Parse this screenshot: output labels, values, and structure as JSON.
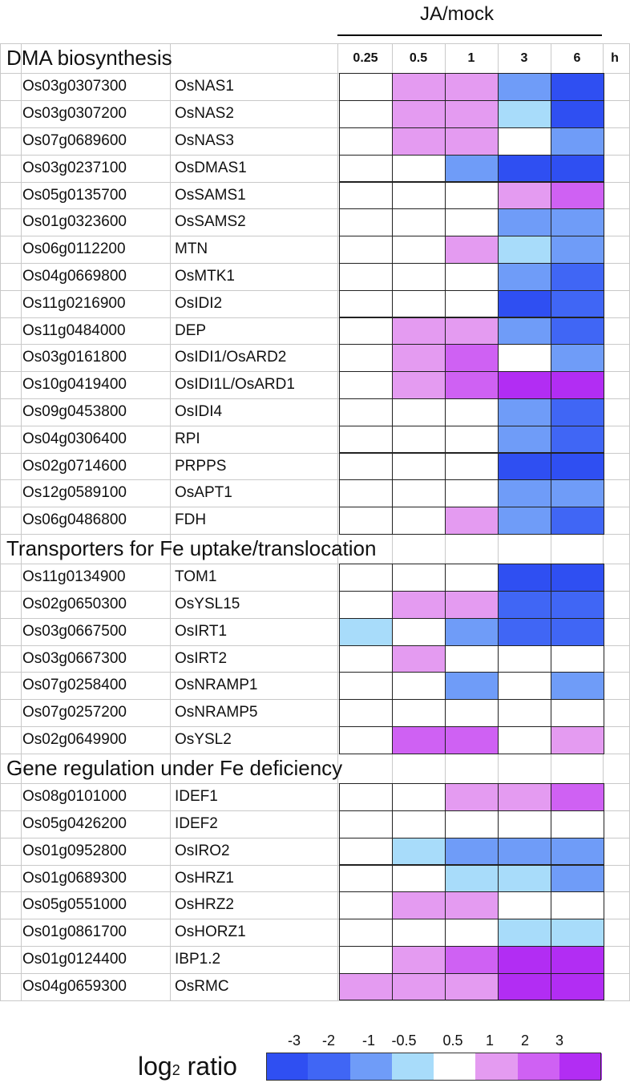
{
  "chart_data": {
    "type": "heatmap",
    "title": "JA/mock",
    "columns": [
      "0.25",
      "0.5",
      "1",
      "3",
      "6"
    ],
    "column_unit": "h",
    "sections": [
      {
        "name": "DMA biosynthesis",
        "rows": [
          {
            "locus": "Os03g0307300",
            "gene": "OsNAS1",
            "values": [
              0,
              1,
              1,
              -1,
              -3
            ]
          },
          {
            "locus": "Os03g0307200",
            "gene": "OsNAS2",
            "values": [
              0,
              1,
              1,
              -0.5,
              -3
            ]
          },
          {
            "locus": "Os07g0689600",
            "gene": "OsNAS3",
            "values": [
              0,
              1,
              1,
              0,
              -1
            ]
          },
          {
            "locus": "Os03g0237100",
            "gene": "OsDMAS1",
            "values": [
              0,
              0,
              -1,
              -3,
              -3
            ]
          },
          {
            "locus": "Os05g0135700",
            "gene": "OsSAMS1",
            "values": [
              0,
              0,
              0,
              1,
              2
            ]
          },
          {
            "locus": "Os01g0323600",
            "gene": "OsSAMS2",
            "values": [
              0,
              0,
              0,
              -1,
              -1
            ]
          },
          {
            "locus": "Os06g0112200",
            "gene": "MTN",
            "values": [
              0,
              0,
              1,
              -0.5,
              -1
            ]
          },
          {
            "locus": "Os04g0669800",
            "gene": "OsMTK1",
            "values": [
              0,
              0,
              0,
              -1,
              -2
            ]
          },
          {
            "locus": "Os11g0216900",
            "gene": "OsIDI2",
            "values": [
              0,
              0,
              0,
              -3,
              -2
            ]
          },
          {
            "locus": "Os11g0484000",
            "gene": "DEP",
            "values": [
              0,
              1,
              1,
              -1,
              -2
            ]
          },
          {
            "locus": "Os03g0161800",
            "gene": "OsIDI1/OsARD2",
            "values": [
              0,
              1,
              2,
              0,
              -1
            ]
          },
          {
            "locus": "Os10g0419400",
            "gene": "OsIDI1L/OsARD1",
            "values": [
              0,
              1,
              2,
              3,
              3
            ]
          },
          {
            "locus": "Os09g0453800",
            "gene": "OsIDI4",
            "values": [
              0,
              0,
              0,
              -1,
              -2
            ]
          },
          {
            "locus": "Os04g0306400",
            "gene": "RPI",
            "values": [
              0,
              0,
              0,
              -1,
              -2
            ]
          },
          {
            "locus": "Os02g0714600",
            "gene": "PRPPS",
            "values": [
              0,
              0,
              0,
              -3,
              -3
            ]
          },
          {
            "locus": "Os12g0589100",
            "gene": "OsAPT1",
            "values": [
              0,
              0,
              0,
              -1,
              -1
            ]
          },
          {
            "locus": "Os06g0486800",
            "gene": "FDH",
            "values": [
              0,
              0,
              1,
              -1,
              -2
            ]
          }
        ]
      },
      {
        "name": "Transporters for Fe uptake/translocation",
        "rows": [
          {
            "locus": "Os11g0134900",
            "gene": "TOM1",
            "values": [
              0,
              0,
              0,
              -3,
              -3
            ]
          },
          {
            "locus": "Os02g0650300",
            "gene": "OsYSL15",
            "values": [
              0,
              1,
              1,
              -2,
              -2
            ]
          },
          {
            "locus": "Os03g0667500",
            "gene": "OsIRT1",
            "values": [
              -0.5,
              0,
              -1,
              -2,
              -2
            ]
          },
          {
            "locus": "Os03g0667300",
            "gene": "OsIRT2",
            "values": [
              0,
              1,
              0,
              0,
              0
            ]
          },
          {
            "locus": "Os07g0258400",
            "gene": "OsNRAMP1",
            "values": [
              0,
              0,
              -1,
              0,
              -1
            ]
          },
          {
            "locus": "Os07g0257200",
            "gene": "OsNRAMP5",
            "values": [
              0,
              0,
              0,
              0,
              0
            ]
          },
          {
            "locus": "Os02g0649900",
            "gene": "OsYSL2",
            "values": [
              0,
              2,
              2,
              0,
              1
            ]
          }
        ]
      },
      {
        "name": "Gene regulation under Fe deficiency",
        "rows": [
          {
            "locus": "Os08g0101000",
            "gene": "IDEF1",
            "values": [
              0,
              0,
              1,
              1,
              2
            ]
          },
          {
            "locus": "Os05g0426200",
            "gene": "IDEF2",
            "values": [
              0,
              0,
              0,
              0,
              0
            ]
          },
          {
            "locus": "Os01g0952800",
            "gene": "OsIRO2",
            "values": [
              0,
              -0.5,
              -1,
              -1,
              -1
            ]
          },
          {
            "locus": "Os01g0689300",
            "gene": "OsHRZ1",
            "values": [
              0,
              0,
              -0.5,
              -0.5,
              -1
            ]
          },
          {
            "locus": "Os05g0551000",
            "gene": "OsHRZ2",
            "values": [
              0,
              1,
              1,
              0,
              0
            ]
          },
          {
            "locus": "Os01g0861700",
            "gene": "OsHORZ1",
            "values": [
              0,
              0,
              0,
              -0.5,
              -0.5
            ]
          },
          {
            "locus": "Os01g0124400",
            "gene": "IBP1.2",
            "values": [
              0,
              1,
              2,
              3,
              3
            ]
          },
          {
            "locus": "Os04g0659300",
            "gene": "OsRMC",
            "values": [
              1,
              1,
              1,
              3,
              3
            ]
          }
        ]
      }
    ],
    "legend": {
      "title_main": "log",
      "title_sub": "2",
      "title_rest": " ratio",
      "ticks": [
        "-3",
        "-2",
        "-1",
        "-0.5",
        "0.5",
        "1",
        "2",
        "3"
      ],
      "bins": [
        {
          "value": -3,
          "color": "#2f4ff2"
        },
        {
          "value": -2,
          "color": "#4066f5"
        },
        {
          "value": -1,
          "color": "#6f9cf8"
        },
        {
          "value": -0.5,
          "color": "#a8dcfa"
        },
        {
          "value": 0,
          "color": "#ffffff"
        },
        {
          "value": 1,
          "color": "#e49bf1"
        },
        {
          "value": 2,
          "color": "#cf61f3"
        },
        {
          "value": 3,
          "color": "#b22df3"
        }
      ]
    }
  }
}
